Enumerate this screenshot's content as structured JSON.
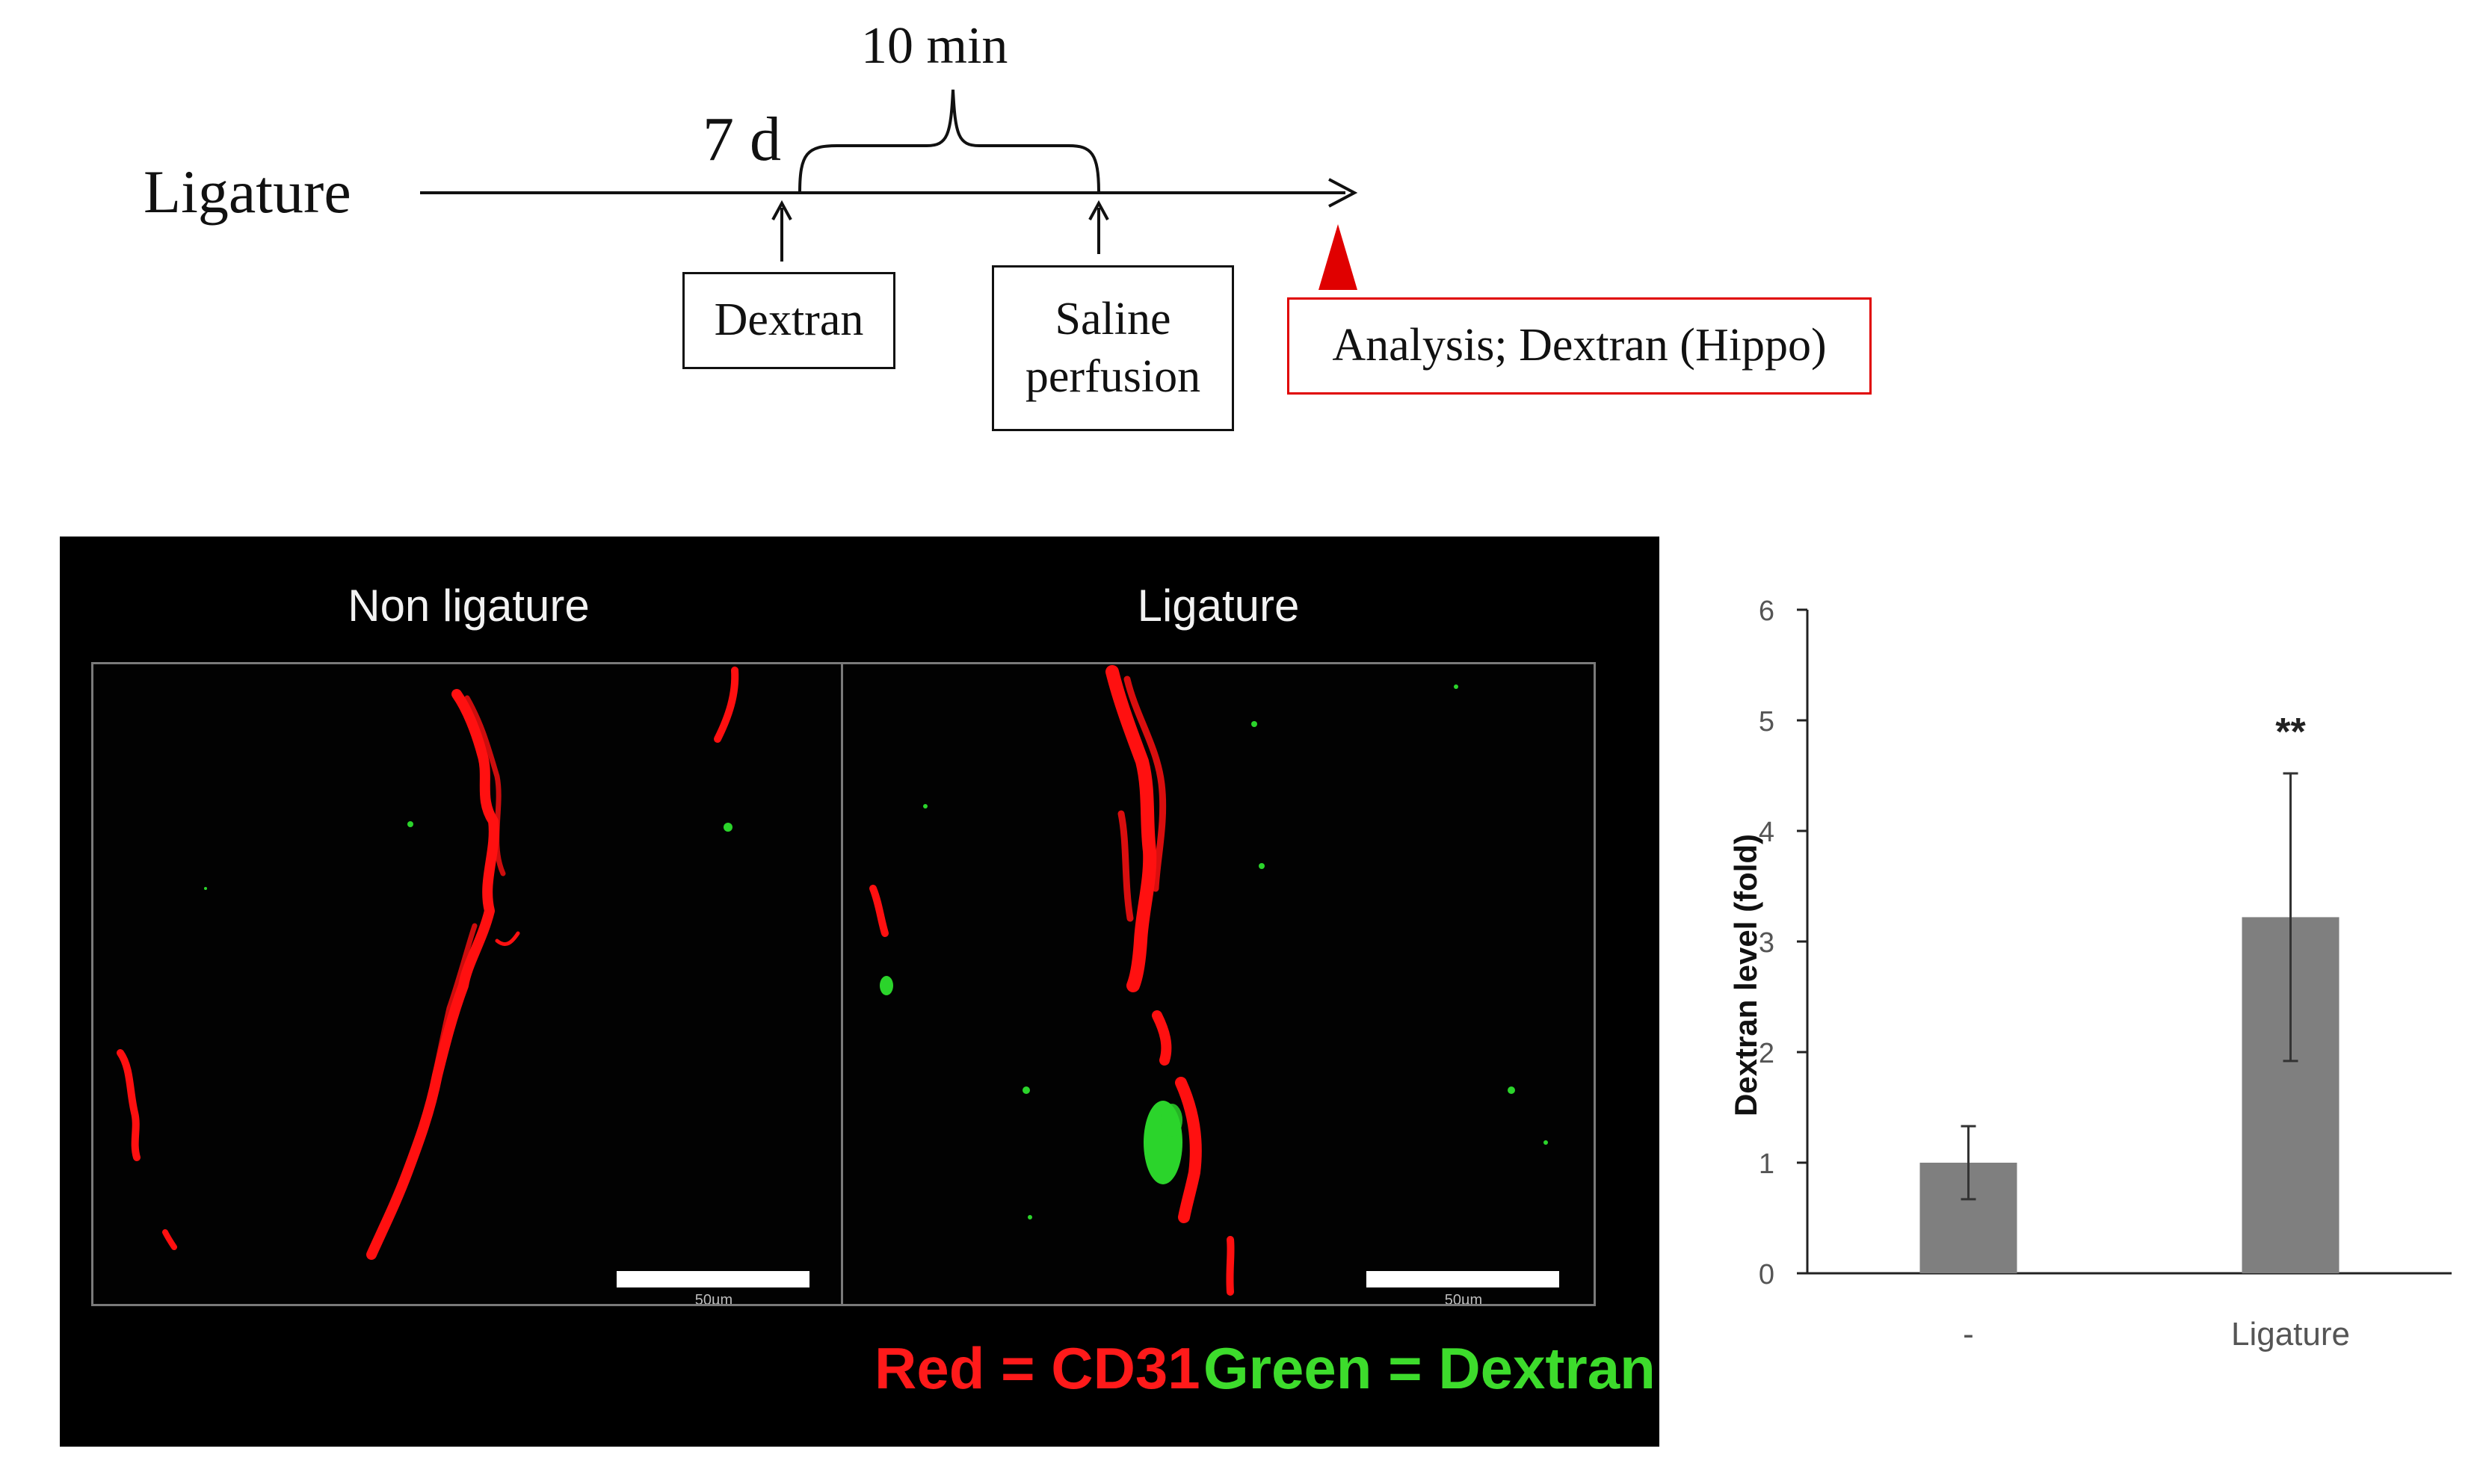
{
  "timeline": {
    "ligature_label": "Ligature",
    "day_label": "7 d",
    "interval_label": "10 min",
    "dextran_box": "Dextran",
    "saline_box": "Saline\nperfusion",
    "analysis_box": "Analysis; Dextran (Hippo)",
    "colors": {
      "line": "#111111",
      "analysis": "#e00000"
    }
  },
  "microscopy": {
    "left_title": "Non ligature",
    "right_title": "Ligature",
    "scale_label": "50µm",
    "legend": {
      "red_text": "Red = CD31",
      "green_text": "Green = Dextran",
      "red_color": "#ff1a1a",
      "green_color": "#3ddc2c"
    }
  },
  "chart_data": {
    "type": "bar",
    "categories": [
      "-",
      "Ligature"
    ],
    "values": [
      1.0,
      3.22
    ],
    "errors": [
      0.33,
      1.3
    ],
    "annotations": [
      "",
      "**"
    ],
    "title": "",
    "xlabel": "",
    "ylabel": "Dextran level (fold)",
    "ylim": [
      0,
      6
    ],
    "yticks": [
      0,
      1,
      2,
      3,
      4,
      5,
      6
    ],
    "grid": false,
    "bar_color": "#7f7f7f"
  }
}
